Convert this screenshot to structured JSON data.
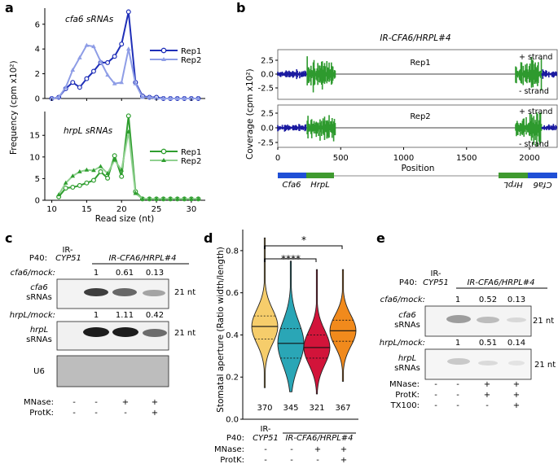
{
  "panels": {
    "a": {
      "letter": "a",
      "ylabel": "Frequency (cpm x10²)",
      "xlabel": "Read size (nt)",
      "top_title": "cfa6 sRNAs",
      "bottom_title": "hrpL sRNAs",
      "x_ticks": [
        "10",
        "15",
        "20",
        "25",
        "30"
      ],
      "top_y_ticks": [
        "0",
        "2",
        "4",
        "6"
      ],
      "bottom_y_ticks": [
        "0",
        "5",
        "10",
        "15"
      ],
      "legend_rep1": "Rep1",
      "legend_rep2": "Rep2"
    },
    "b": {
      "letter": "b",
      "title": "IR-CFA6/HRPL#4",
      "ylabel": "Coverage (cpm x10²)",
      "xlabel": "Position",
      "track1": "Rep1",
      "track2": "Rep2",
      "plus_strand": "+ strand",
      "minus_strand": "- strand",
      "y_ticks": [
        "2.5",
        "0.0",
        "-2.5"
      ],
      "x_ticks": [
        "0",
        "500",
        "1000",
        "1500",
        "2000"
      ],
      "gene_labels": [
        "Cfa6",
        "HrpL",
        "HrpL",
        "Cfa6"
      ]
    },
    "c": {
      "letter": "c",
      "p40_label": "P40:",
      "col1_header_line1": "IR-",
      "col1_header_line2": "CYP51",
      "group_header": "IR-CFA6/HRPL#4",
      "cfa6_ratio_label": "cfa6/mock:",
      "cfa6_ratios": [
        "1",
        "0.61",
        "0.13"
      ],
      "cfa6_blot_label_1": "cfa6",
      "cfa6_blot_label_2": "sRNAs",
      "hrpl_ratio_label": "hrpL/mock:",
      "hrpl_ratios": [
        "1",
        "1.11",
        "0.42"
      ],
      "hrpl_blot_label_1": "hrpL",
      "hrpl_blot_label_2": "sRNAs",
      "u6_label": "U6",
      "size_marker": "21 nt",
      "mnase_label": "MNase:",
      "protk_label": "ProtK:",
      "mnase_values": [
        "-",
        "-",
        "+",
        "+"
      ],
      "protk_values": [
        "-",
        "-",
        "-",
        "+"
      ]
    },
    "d": {
      "letter": "d",
      "ylabel": "Stomatal aperture (Ratio width/length)",
      "y_ticks": [
        "0.0",
        "0.2",
        "0.4",
        "0.6",
        "0.8"
      ],
      "counts": [
        "370",
        "345",
        "321",
        "367"
      ],
      "sig1": "****",
      "sig2": "*",
      "p40_label": "P40:",
      "col1_line1": "IR-",
      "col1_line2": "CYP51",
      "group_header": "IR-CFA6/HRPL#4",
      "mnase_label": "MNase:",
      "protk_label": "ProtK:",
      "mnase_values": [
        "-",
        "-",
        "+",
        "+"
      ],
      "protk_values": [
        "-",
        "-",
        "-",
        "+"
      ]
    },
    "e": {
      "letter": "e",
      "p40_label": "P40:",
      "col1_line1": "IR-",
      "col1_line2": "CYP51",
      "group_header": "IR-CFA6/HRPL#4",
      "cfa6_ratio_label": "cfa6/mock:",
      "cfa6_ratios": [
        "1",
        "0.52",
        "0.13"
      ],
      "blot1_label_1": "cfa6",
      "blot1_label_2": "sRNAs",
      "hrpl_ratio_label": "hrpL/mock:",
      "hrpl_ratios": [
        "1",
        "0.51",
        "0.14"
      ],
      "blot2_label_1": "hrpL",
      "blot2_label_2": "sRNAs",
      "size_marker": "21 nt",
      "mnase_label": "MNase:",
      "protk_label": "ProtK:",
      "tx_label": "TX100:",
      "mnase_values": [
        "-",
        "-",
        "+",
        "+"
      ],
      "protk_values": [
        "-",
        "-",
        "+",
        "+"
      ],
      "tx_values": [
        "-",
        "-",
        "-",
        "+"
      ]
    }
  },
  "colors": {
    "blue_dark": "#1f2fb8",
    "blue_light": "#8e9de6",
    "green_dark": "#2f9e2f",
    "green_light": "#8fd08f",
    "cov_blue": "#1a1aa0",
    "cov_green": "#2e9a2e",
    "violin_yellow": "#f6cd6b",
    "violin_teal": "#2aa6b6",
    "violin_red": "#d2143a",
    "violin_orange": "#f18a1c"
  },
  "chart_data": [
    {
      "type": "line",
      "title": "cfa6 sRNAs",
      "xlabel": "Read size (nt)",
      "ylabel": "Frequency (cpm x10²)",
      "x": [
        10,
        11,
        12,
        13,
        14,
        15,
        16,
        17,
        18,
        19,
        20,
        21,
        22,
        23,
        24,
        25,
        26,
        27,
        28,
        29,
        30,
        31
      ],
      "series": [
        {
          "name": "Rep1",
          "values": [
            0,
            0.1,
            0.8,
            1.3,
            0.9,
            1.6,
            2.2,
            2.9,
            2.9,
            3.4,
            4.4,
            7.0,
            1.3,
            0.2,
            0.1,
            0.1,
            0,
            0,
            0,
            0,
            0,
            0
          ]
        },
        {
          "name": "Rep2",
          "values": [
            0,
            0.1,
            0.9,
            2.3,
            3.3,
            4.3,
            4.2,
            3.0,
            1.9,
            1.2,
            1.3,
            4.0,
            1.2,
            0.1,
            0.1,
            0,
            0,
            0,
            0,
            0,
            0,
            0
          ]
        }
      ],
      "xlim": [
        9,
        32
      ],
      "ylim": [
        0,
        7.3
      ]
    },
    {
      "type": "line",
      "title": "hrpL sRNAs",
      "xlabel": "Read size (nt)",
      "ylabel": "Frequency (cpm x10²)",
      "x": [
        11,
        12,
        13,
        14,
        15,
        16,
        17,
        18,
        19,
        20,
        21,
        22,
        23,
        24,
        25,
        26,
        27,
        28,
        29,
        30,
        31
      ],
      "series": [
        {
          "name": "Rep1",
          "values": [
            0.8,
            2.8,
            3.0,
            3.4,
            4.0,
            4.6,
            6.6,
            5.1,
            10.3,
            5.5,
            19.5,
            2.0,
            0.3,
            0.3,
            0.3,
            0.3,
            0.3,
            0.3,
            0.3,
            0.3,
            0.3
          ]
        },
        {
          "name": "Rep2",
          "values": [
            1.3,
            4.0,
            5.6,
            6.6,
            7.0,
            6.9,
            7.8,
            6.2,
            9.3,
            7.0,
            15.8,
            1.6,
            0.3,
            0.3,
            0.3,
            0.3,
            0.3,
            0.3,
            0.3,
            0.3,
            0.3
          ]
        }
      ],
      "xlim": [
        9,
        32
      ],
      "ylim": [
        0,
        20.5
      ]
    },
    {
      "type": "area",
      "title": "IR-CFA6/HRPL#4",
      "xlabel": "Position",
      "ylabel": "Coverage (cpm x10²)",
      "xlim": [
        0,
        2220
      ],
      "ylim": [
        -4,
        4
      ],
      "segments": [
        {
          "name": "Cfa6",
          "start": 0,
          "end": 230
        },
        {
          "name": "HrpL",
          "start": 230,
          "end": 460
        },
        {
          "name": "HrpL",
          "start": 1890,
          "end": 2100
        },
        {
          "name": "Cfa6",
          "start": 2100,
          "end": 2220
        }
      ]
    },
    {
      "type": "violin",
      "ylabel": "Stomatal aperture (Ratio width/length)",
      "ylim": [
        0,
        0.9
      ],
      "groups": [
        {
          "label": "IR-CYP51 / - / -",
          "n": 370,
          "median": 0.44,
          "q1": 0.38,
          "q3": 0.49,
          "min": 0.15,
          "max": 0.86
        },
        {
          "label": "IR-CFA6/HRPL#4 / - / -",
          "n": 345,
          "median": 0.36,
          "q1": 0.29,
          "q3": 0.43,
          "min": 0.13,
          "max": 0.75
        },
        {
          "label": "IR-CFA6/HRPL#4 / + / -",
          "n": 321,
          "median": 0.34,
          "q1": 0.29,
          "q3": 0.4,
          "min": 0.12,
          "max": 0.71
        },
        {
          "label": "IR-CFA6/HRPL#4 / + / +",
          "n": 367,
          "median": 0.42,
          "q1": 0.37,
          "q3": 0.47,
          "min": 0.18,
          "max": 0.71
        }
      ]
    }
  ]
}
